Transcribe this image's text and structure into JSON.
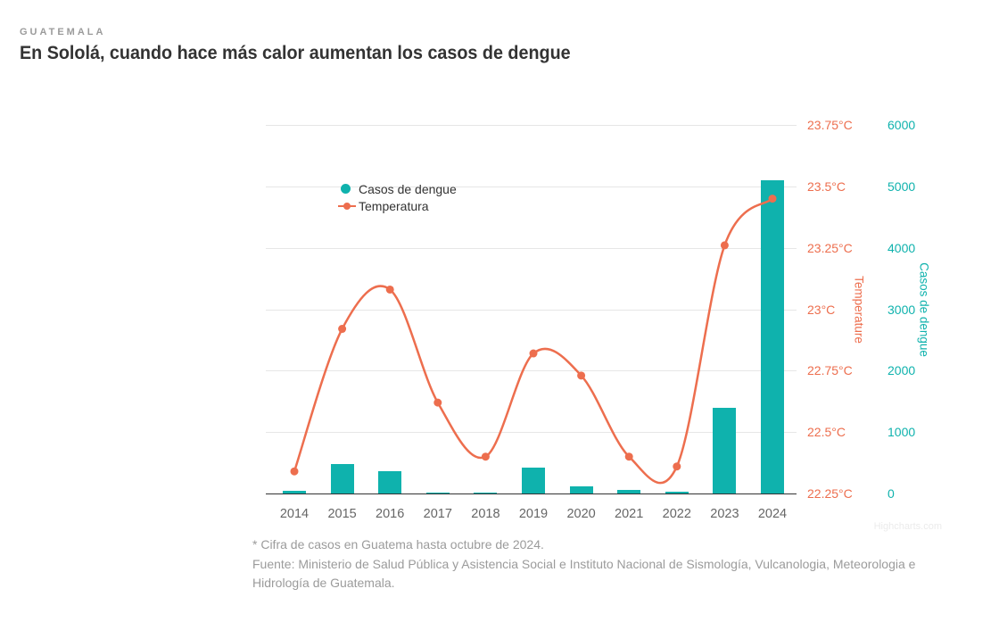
{
  "header": {
    "kicker": "GUATEMALA",
    "title": "En Sololá, cuando hace más calor aumentan los casos de dengue"
  },
  "legend": {
    "items": [
      {
        "label": "Casos de dengue",
        "marker": "dot",
        "color": "#0fb2ad"
      },
      {
        "label": "Temperatura",
        "marker": "line-dot",
        "color": "#ed6e4e"
      }
    ]
  },
  "footer": {
    "note": "* Cifra de casos en Guatema hasta octubre de 2024.",
    "source": "Fuente: Ministerio de Salud Pública y Asistencia Social e Instituto Nacional de Sismología, Vulcanologia, Meteorologia e Hidrología de Guatemala."
  },
  "watermark": "Highcharts.com",
  "colors": {
    "bar": "#0fb2ad",
    "line": "#ed6e4e",
    "grid": "#e6e6e6",
    "axis_line": "#333333",
    "x_labels": "#666666"
  },
  "chart_data": {
    "type": "combo",
    "categories": [
      "2014",
      "2015",
      "2016",
      "2017",
      "2018",
      "2019",
      "2020",
      "2021",
      "2022",
      "2023",
      "2024"
    ],
    "series": [
      {
        "name": "Casos de dengue",
        "type": "bar",
        "axis": "cases",
        "color": "#0fb2ad",
        "values": [
          45,
          475,
          370,
          5,
          5,
          425,
          110,
          65,
          35,
          1400,
          5100
        ]
      },
      {
        "name": "Temperatura",
        "type": "line",
        "axis": "temperature",
        "color": "#ed6e4e",
        "values": [
          22.34,
          22.92,
          23.08,
          22.62,
          22.4,
          22.82,
          22.73,
          22.4,
          22.36,
          23.26,
          23.45
        ]
      }
    ],
    "axes": {
      "temperature": {
        "title": "Temperature",
        "side": "right-inner",
        "min": 22.25,
        "max": 23.75,
        "ticks": [
          "22.25°C",
          "22.5°C",
          "22.75°C",
          "23°C",
          "23.25°C",
          "23.5°C",
          "23.75°C"
        ]
      },
      "cases": {
        "title": "Casos de dengue",
        "side": "right-outer",
        "min": 0,
        "max": 6000,
        "ticks": [
          "0",
          "1000",
          "2000",
          "3000",
          "4000",
          "5000",
          "6000"
        ]
      }
    },
    "grid": true,
    "legend_position": "inside-top-left"
  }
}
